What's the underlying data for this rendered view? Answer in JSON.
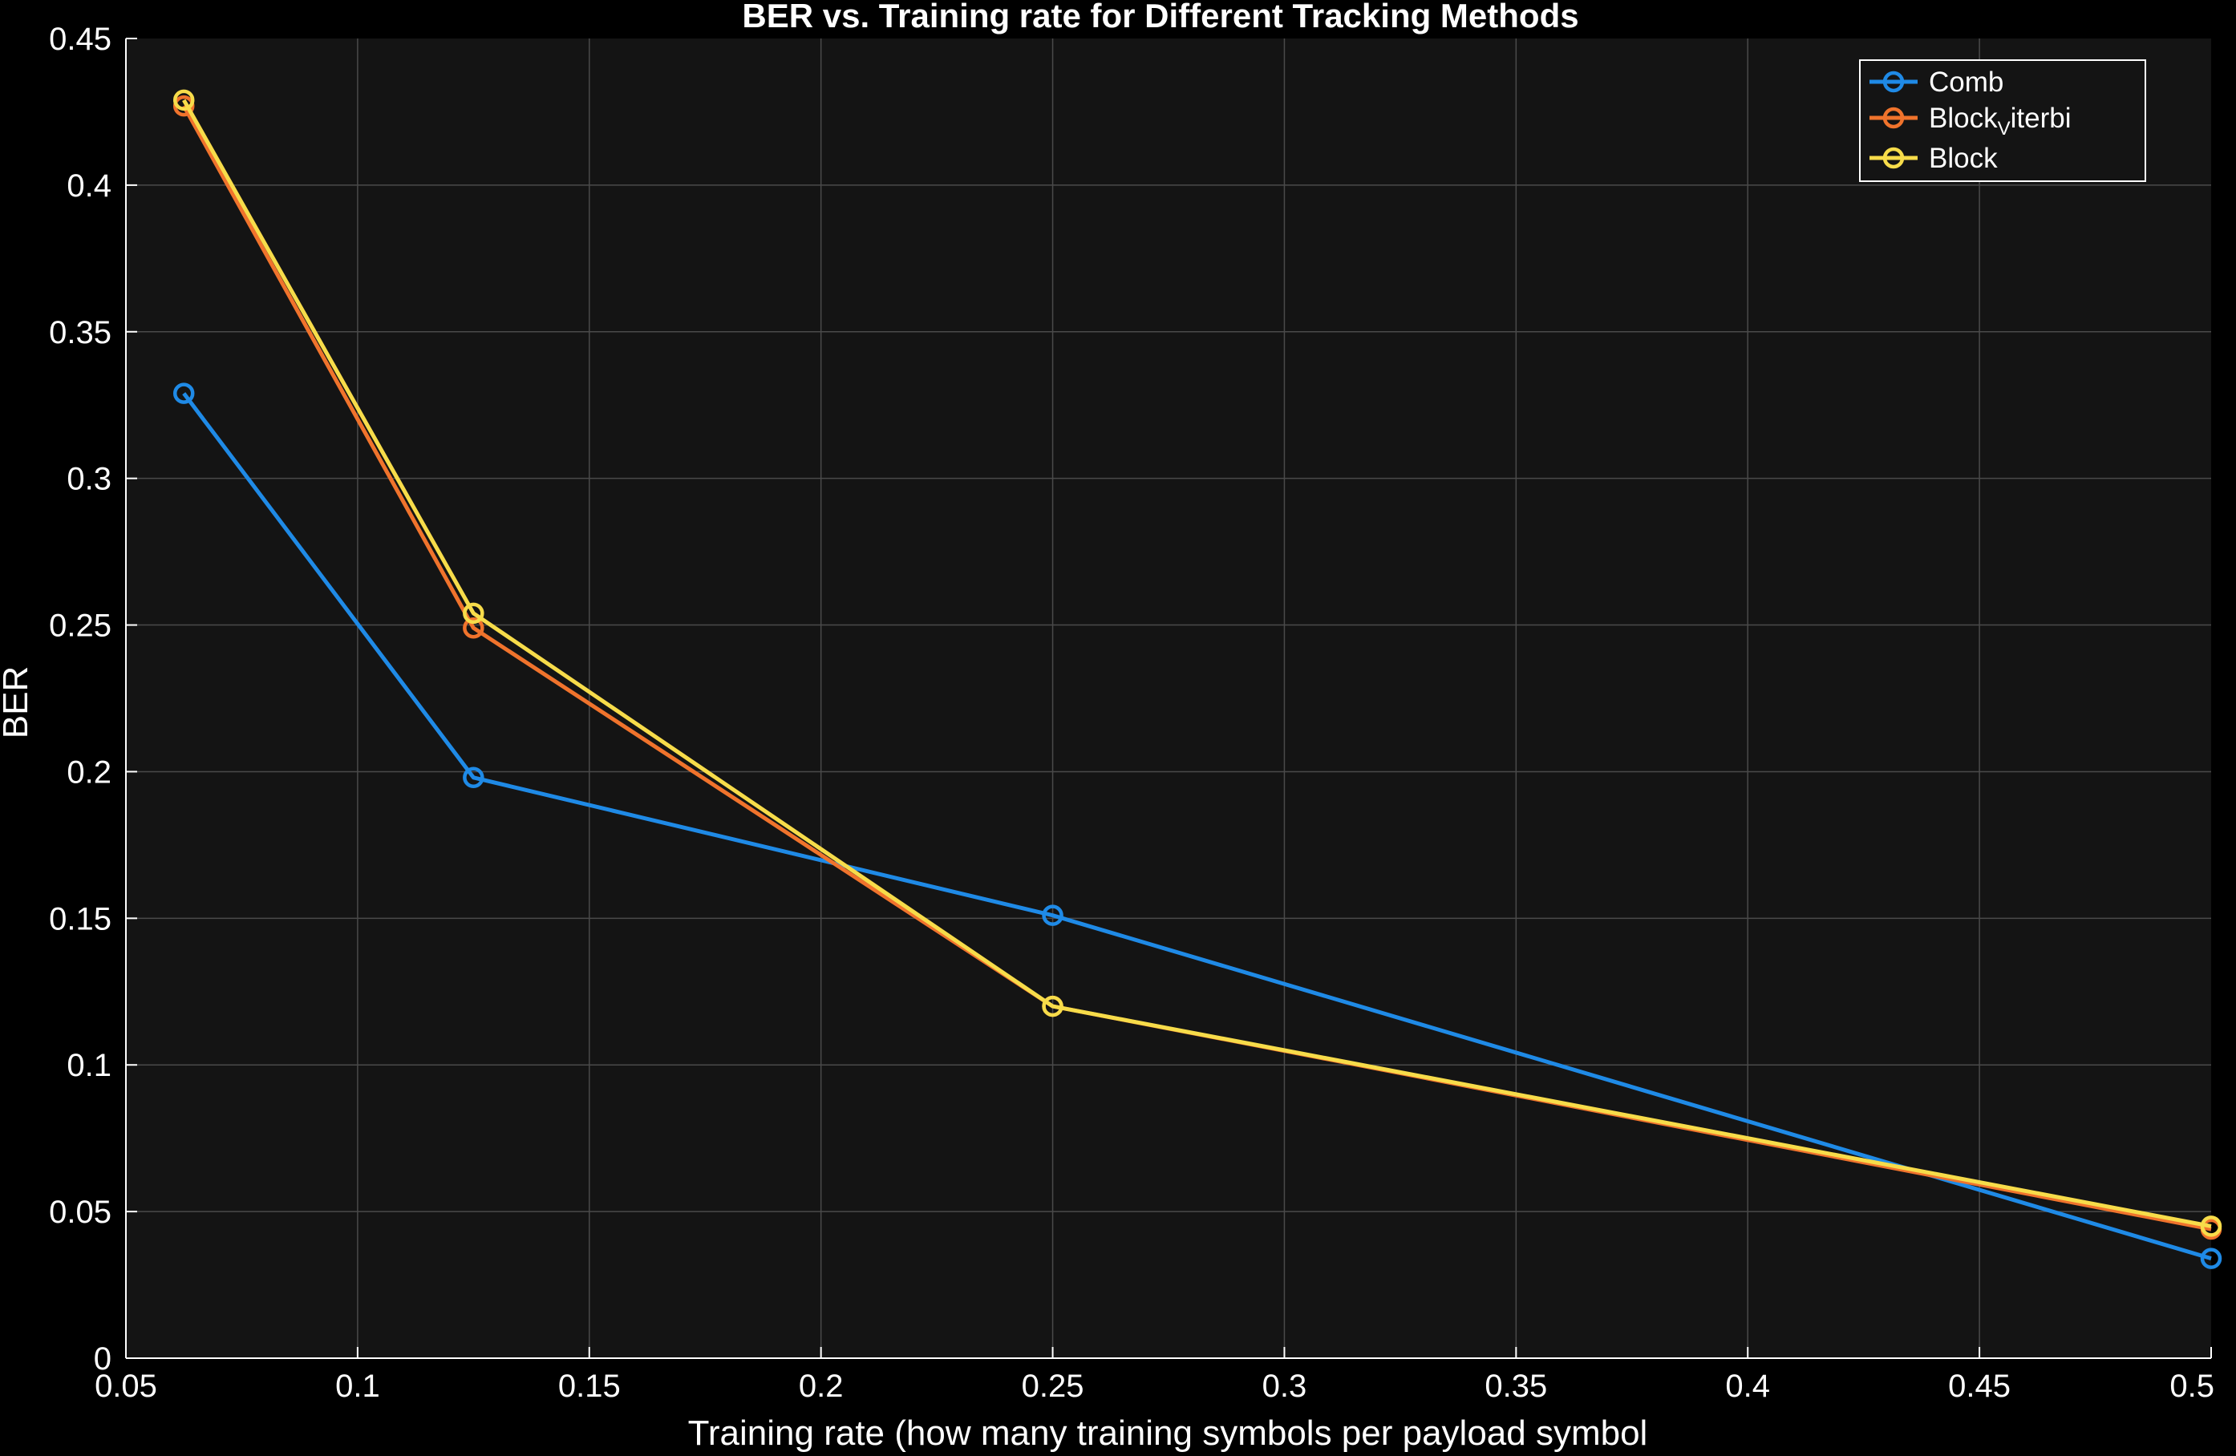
{
  "chart_data": {
    "type": "line",
    "title": "BER vs. Training rate for Different Tracking Methods",
    "xlabel": "Training rate (how many training symbols per payload symbol",
    "ylabel": "BER",
    "xlim": [
      0.05,
      0.5
    ],
    "ylim": [
      0,
      0.45
    ],
    "xticks": [
      0.05,
      0.1,
      0.15,
      0.2,
      0.25,
      0.3,
      0.35,
      0.4,
      0.45,
      0.5
    ],
    "xtick_labels": [
      "0.05",
      "0.1",
      "0.15",
      "0.2",
      "0.25",
      "0.3",
      "0.35",
      "0.4",
      "0.45",
      "0.5"
    ],
    "yticks": [
      0,
      0.05,
      0.1,
      0.15,
      0.2,
      0.25,
      0.3,
      0.35,
      0.4,
      0.45
    ],
    "ytick_labels": [
      "0",
      "0.05",
      "0.1",
      "0.15",
      "0.2",
      "0.25",
      "0.3",
      "0.35",
      "0.4",
      "0.45"
    ],
    "grid": true,
    "legend_position": "top-right",
    "x": [
      0.0625,
      0.125,
      0.25,
      0.5
    ],
    "series": [
      {
        "name": "Comb",
        "values": [
          0.329,
          0.198,
          0.151,
          0.034
        ],
        "color": "#1f8ae6",
        "marker": "circle"
      },
      {
        "name": "Block",
        "name_subscript": "V",
        "name_suffix": "iterbi",
        "values": [
          0.427,
          0.249,
          0.12,
          0.044
        ],
        "color": "#f0732c",
        "marker": "circle"
      },
      {
        "name": "Block",
        "values": [
          0.429,
          0.254,
          0.12,
          0.045
        ],
        "color": "#f7dc4a",
        "marker": "circle"
      }
    ],
    "background_color": "#141414",
    "figure_color": "#000000",
    "grid_color": "#4a4a4a"
  }
}
